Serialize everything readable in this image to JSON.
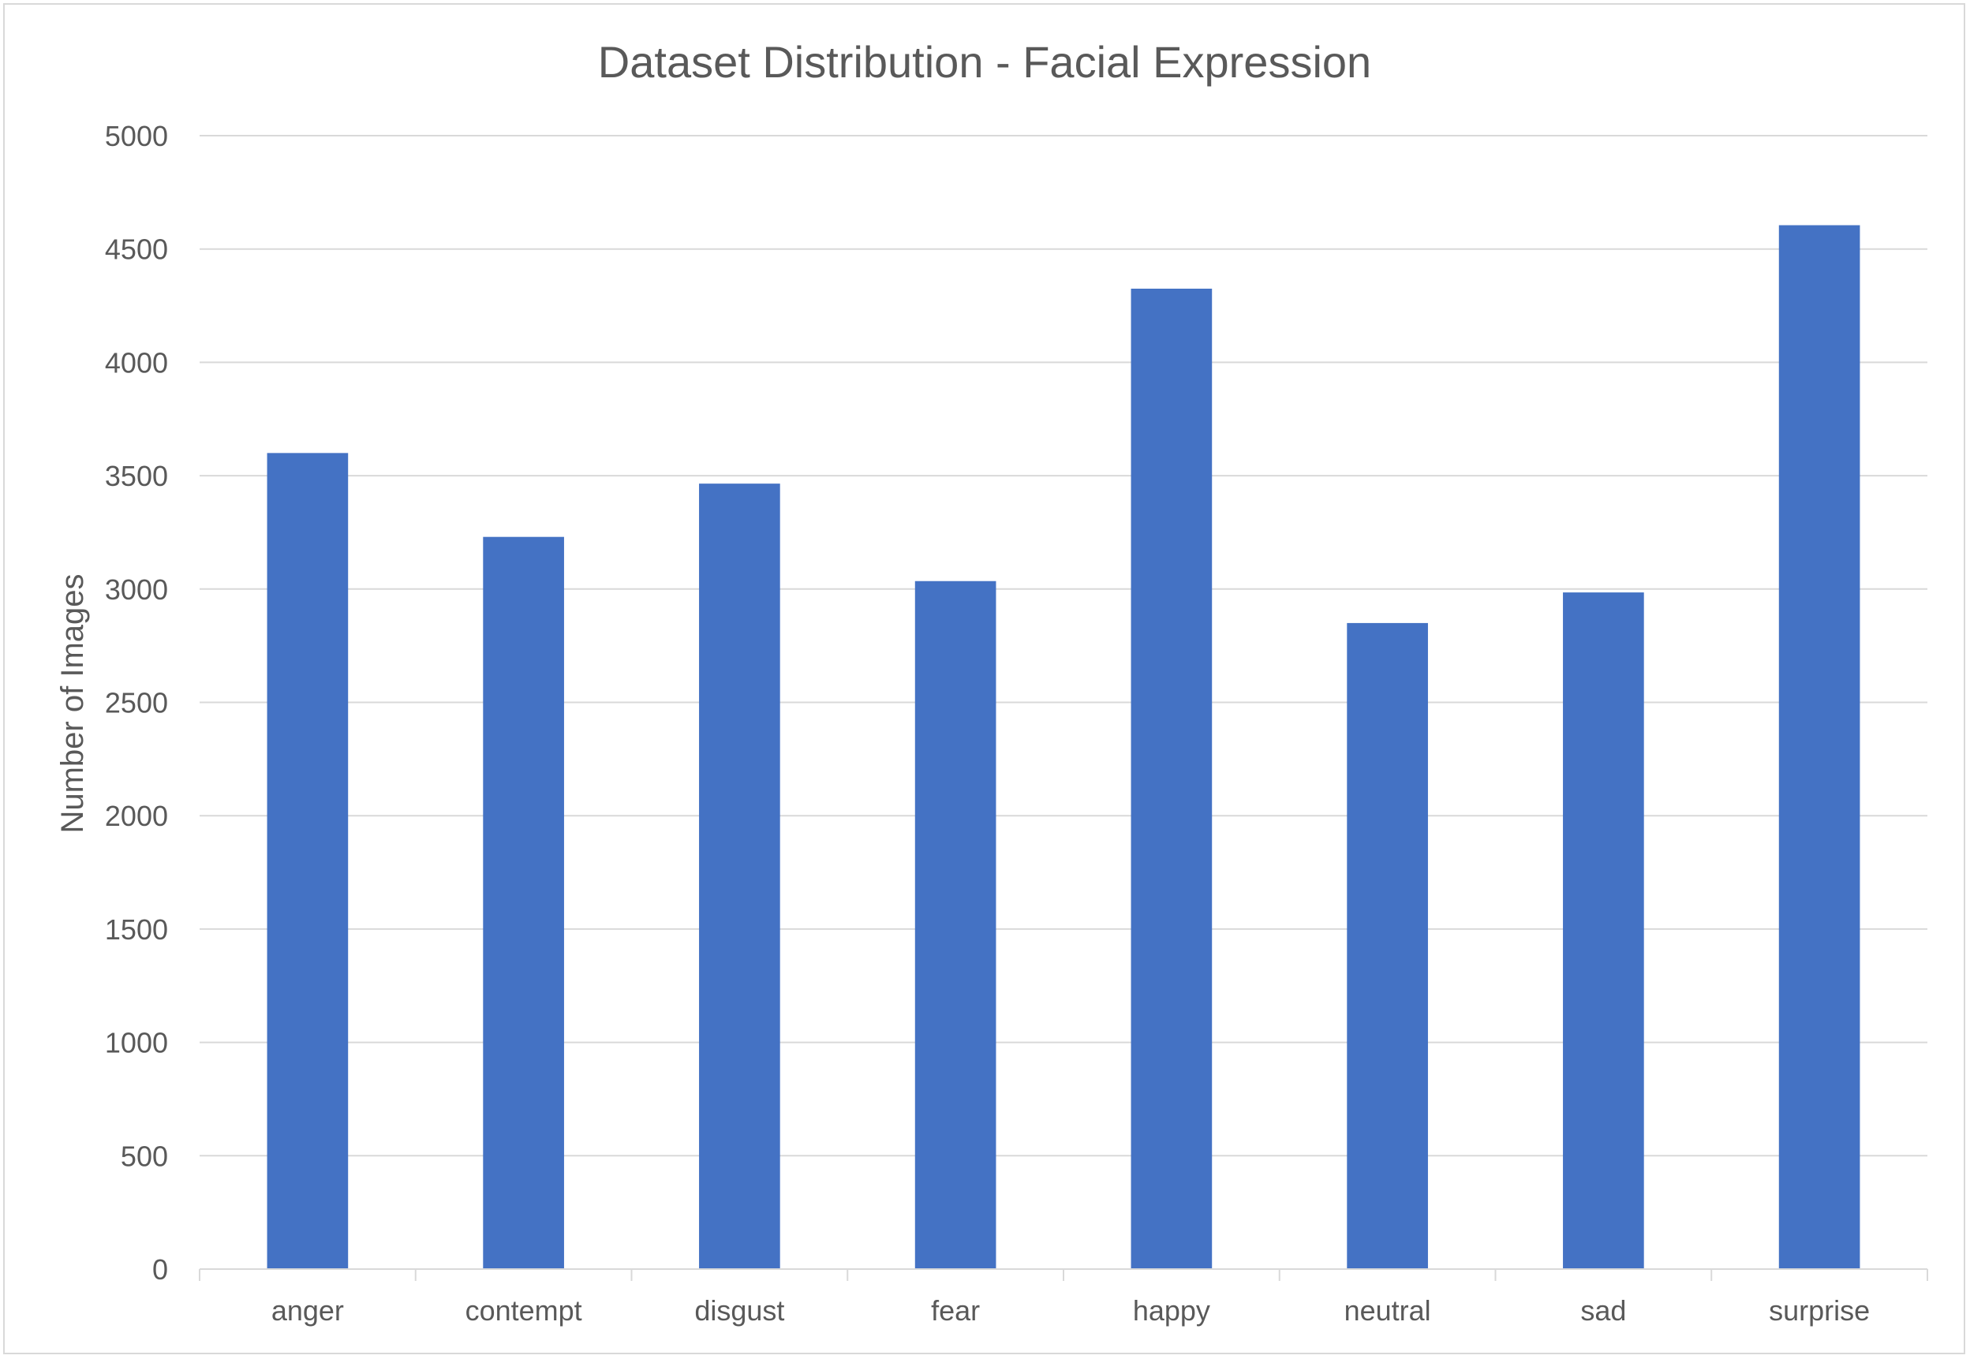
{
  "chart_data": {
    "type": "bar",
    "title": "Dataset Distribution - Facial Expression",
    "xlabel": "",
    "ylabel": "Number of Images",
    "categories": [
      "anger",
      "contempt",
      "disgust",
      "fear",
      "happy",
      "neutral",
      "sad",
      "surprise"
    ],
    "values": [
      3600,
      3230,
      3465,
      3035,
      4325,
      2850,
      2985,
      4605
    ],
    "ylim": [
      0,
      5000
    ],
    "yticks": [
      "0",
      "500",
      "1000",
      "1500",
      "2000",
      "2500",
      "3000",
      "3500",
      "4000",
      "4500",
      "5000"
    ],
    "grid": true,
    "legend": "none",
    "bar_color": "#4472c4",
    "grid_color": "#d9d9d9",
    "text_color": "#595959"
  }
}
